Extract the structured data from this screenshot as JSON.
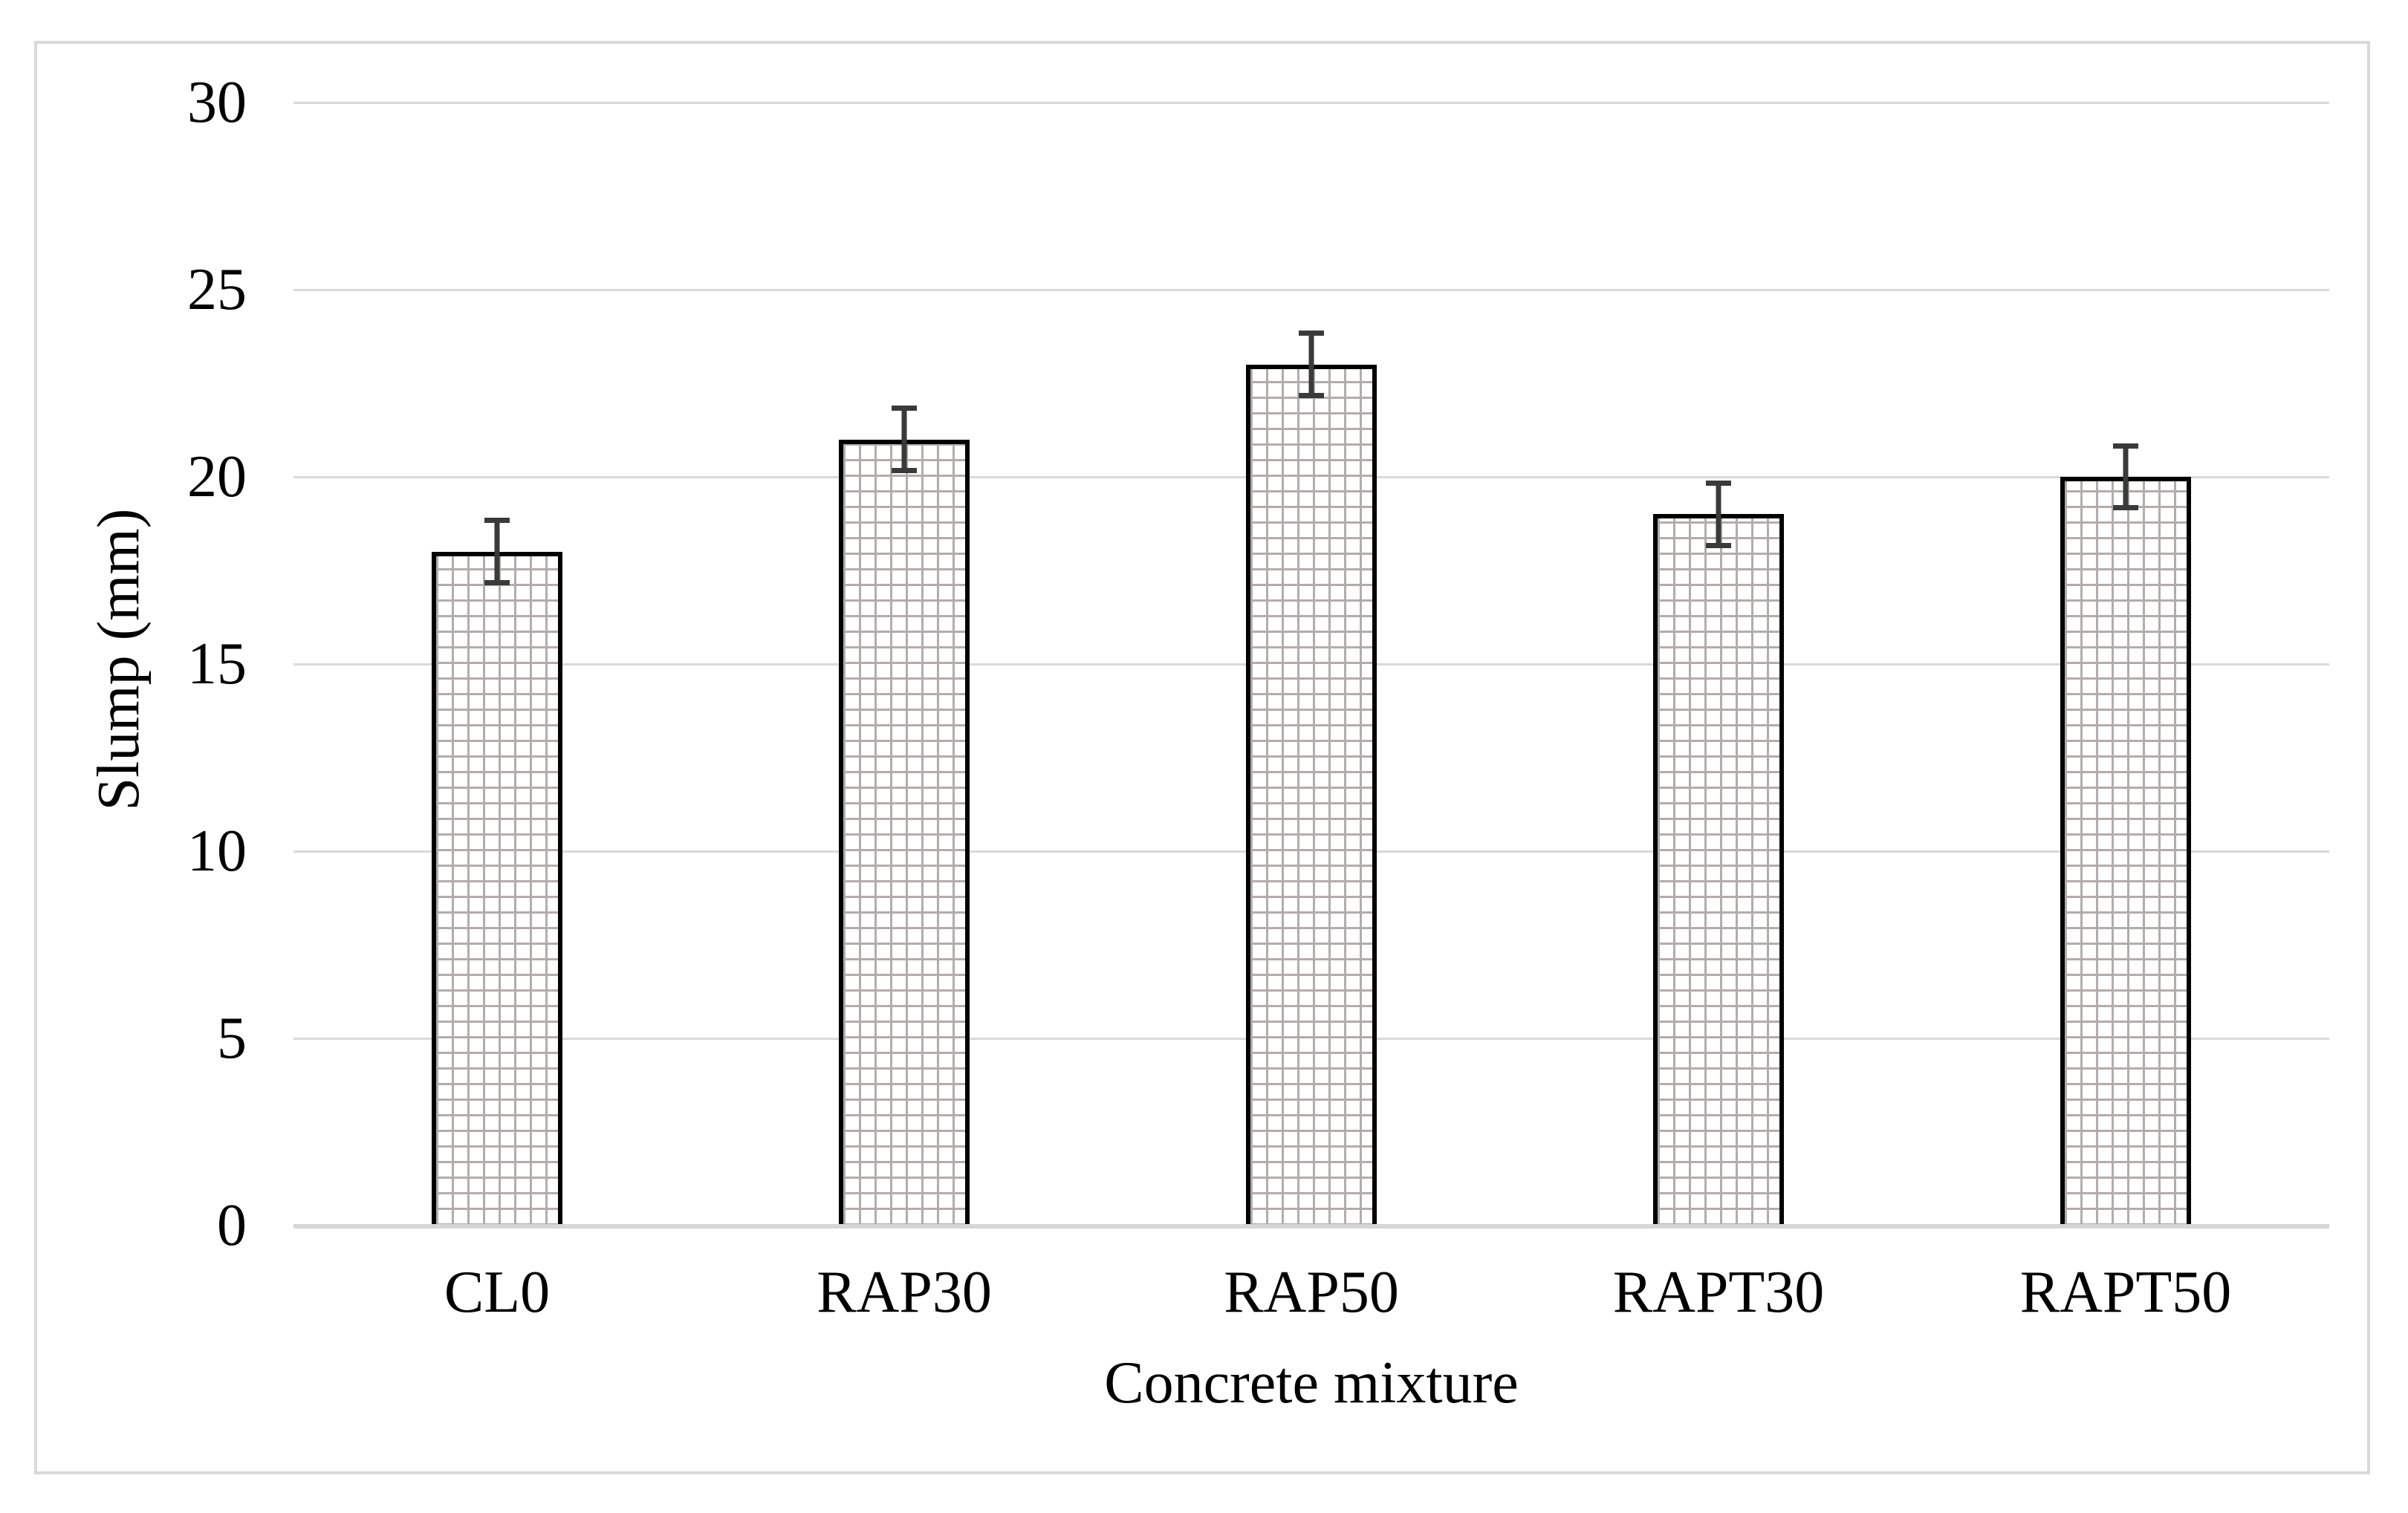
{
  "chart_data": {
    "type": "bar",
    "title": "",
    "xlabel": "Concrete mixture",
    "ylabel": "Slump (mm)",
    "categories": [
      "CL0",
      "RAP30",
      "RAP50",
      "RAPT30",
      "RAPT50"
    ],
    "values": [
      18,
      21,
      23,
      19,
      20
    ],
    "error_bars": [
      0.9,
      0.9,
      0.9,
      0.9,
      0.9
    ],
    "ylim": [
      0,
      30
    ],
    "ytick_step": 5,
    "ytick_labels": [
      "0",
      "5",
      "10",
      "15",
      "20",
      "25",
      "30"
    ],
    "grid": "horizontal",
    "legend_position": "none",
    "bar_fill_style": "small-grid-pattern",
    "colors": {
      "background": "#ffffff",
      "frame_border": "#d9d9d9",
      "gridline": "#d9d9d9",
      "axis_line": "#d6d6d6",
      "bar_border": "#000000",
      "bar_pattern_line": "#b2adab",
      "bar_fill_background": "#ffffff",
      "error_bar": "#3a3a3a",
      "text": "#000000"
    }
  }
}
